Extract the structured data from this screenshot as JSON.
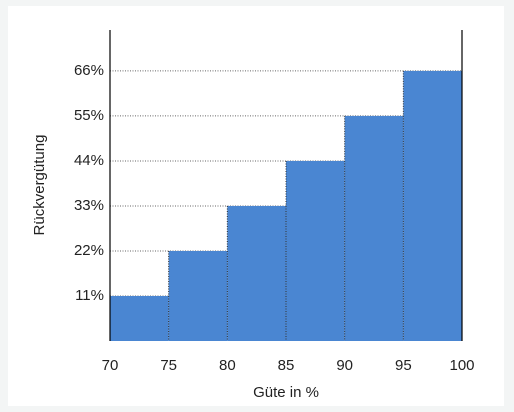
{
  "chart_data": {
    "type": "histogram",
    "xlabel": "Güte in %",
    "ylabel": "Rückvergütung",
    "bins": [
      70,
      75,
      80,
      85,
      90,
      95,
      100
    ],
    "values": [
      11,
      22,
      33,
      44,
      55,
      66
    ],
    "color": "#4a86d2",
    "xlim": [
      70,
      100
    ],
    "xticks": [
      70,
      75,
      80,
      85,
      90,
      95,
      100
    ],
    "ylim": [
      0,
      76
    ],
    "yticks": [
      {
        "value": 11,
        "label": "11%"
      },
      {
        "value": 22,
        "label": "22%"
      },
      {
        "value": 33,
        "label": "33%"
      },
      {
        "value": 44,
        "label": "44%"
      },
      {
        "value": 55,
        "label": "55%"
      },
      {
        "value": 66,
        "label": "66%"
      }
    ],
    "grid": true
  }
}
